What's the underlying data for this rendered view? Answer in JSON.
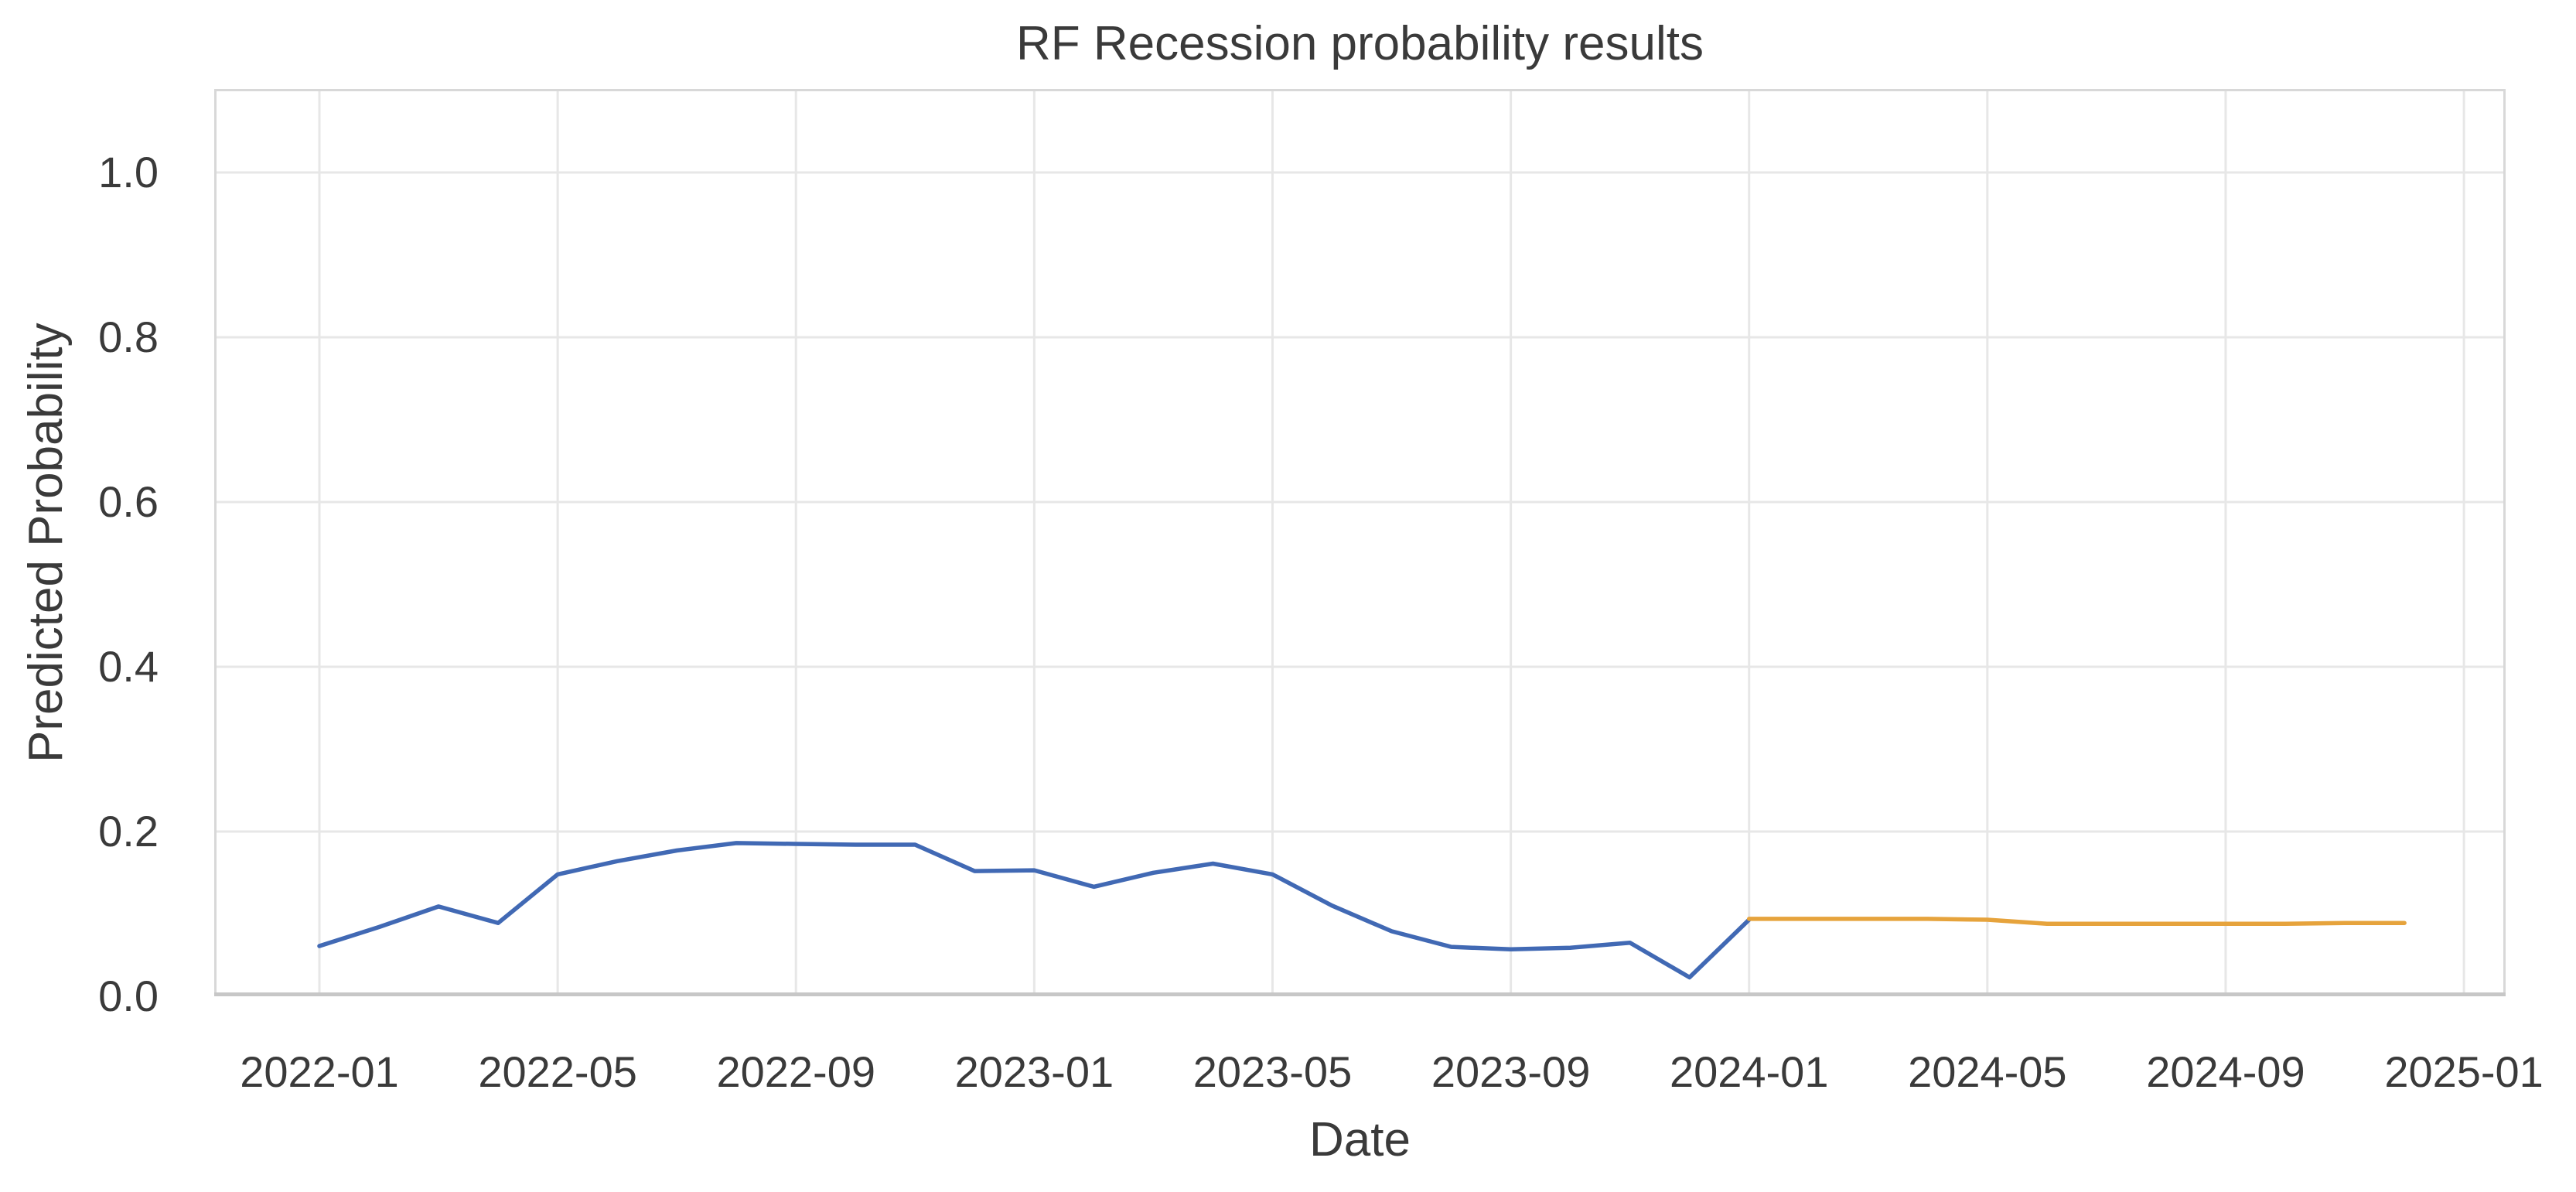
{
  "title": "RF Recession probability results",
  "chart_data": {
    "type": "line",
    "title": "RF Recession probability results",
    "xlabel": "Date",
    "ylabel": "Predicted Probability",
    "x_tick_labels": [
      "2022-01",
      "2022-05",
      "2022-09",
      "2023-01",
      "2023-05",
      "2023-09",
      "2024-01",
      "2024-05",
      "2024-09",
      "2025-01"
    ],
    "y_tick_labels": [
      "0.0",
      "0.2",
      "0.4",
      "0.6",
      "0.8",
      "1.0"
    ],
    "ylim": [
      0.0,
      1.1
    ],
    "grid": true,
    "legend_position": "none",
    "background": "#ffffff",
    "gridline_color": "#e7e7e7",
    "spine_color": "#d8d8d8",
    "bottom_spine_color": "#c7c7c7",
    "series": [
      {
        "name": "blue-line",
        "color": "#4169b4",
        "x": [
          "2022-01",
          "2022-02",
          "2022-03",
          "2022-04",
          "2022-05",
          "2022-06",
          "2022-07",
          "2022-08",
          "2022-09",
          "2022-10",
          "2022-11",
          "2022-12",
          "2023-01",
          "2023-02",
          "2023-03",
          "2023-04",
          "2023-05",
          "2023-06",
          "2023-07",
          "2023-08",
          "2023-09",
          "2023-10",
          "2023-11",
          "2023-12",
          "2024-01"
        ],
        "values": [
          0.061,
          0.084,
          0.109,
          0.089,
          0.148,
          0.164,
          0.177,
          0.186,
          0.185,
          0.184,
          0.184,
          0.152,
          0.153,
          0.133,
          0.15,
          0.161,
          0.148,
          0.11,
          0.079,
          0.06,
          0.057,
          0.059,
          0.065,
          0.023,
          0.093
        ]
      },
      {
        "name": "orange-line",
        "color": "#e6a33c",
        "x": [
          "2024-01",
          "2024-02",
          "2024-03",
          "2024-04",
          "2024-05",
          "2024-06",
          "2024-07",
          "2024-08",
          "2024-09",
          "2024-10",
          "2024-11",
          "2024-12"
        ],
        "values": [
          0.094,
          0.094,
          0.094,
          0.094,
          0.093,
          0.088,
          0.088,
          0.088,
          0.088,
          0.088,
          0.089,
          0.089
        ]
      }
    ]
  }
}
